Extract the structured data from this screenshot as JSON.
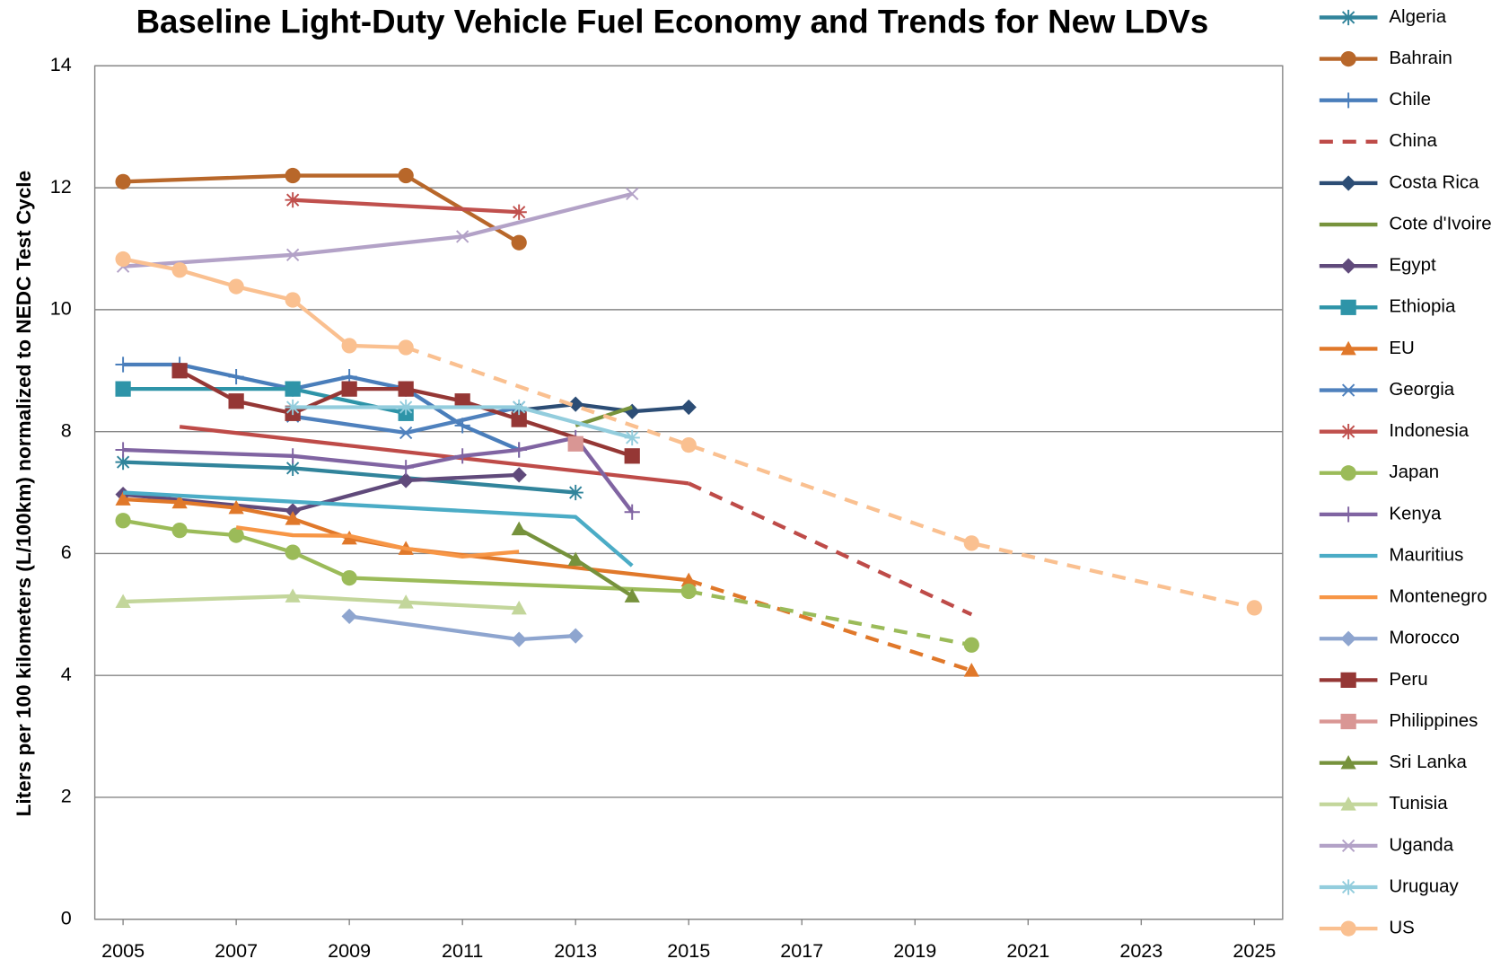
{
  "chart_data": {
    "type": "line",
    "title": "Baseline Light-Duty Vehicle Fuel Economy and Trends for New LDVs",
    "y_label": "Liters per 100 kilometers (L/100km) normalized to NEDC Test Cycle",
    "xlim": [
      2004.5,
      2025.5
    ],
    "xticks": [
      2005,
      2007,
      2009,
      2011,
      2013,
      2015,
      2017,
      2019,
      2021,
      2023,
      2025
    ],
    "ylim": [
      0,
      14
    ],
    "yticks": [
      0,
      2,
      4,
      6,
      8,
      10,
      12,
      14
    ],
    "grid": true,
    "legend": "right",
    "series": [
      {
        "name": "Algeria",
        "color": "#31849b",
        "marker": "asterisk",
        "x": [
          2005,
          2008,
          2013
        ],
        "values": [
          7.5,
          7.4,
          7.0
        ]
      },
      {
        "name": "Bahrain",
        "color": "#b8672a",
        "marker": "circle",
        "x": [
          2005,
          2008,
          2010,
          2012
        ],
        "values": [
          12.1,
          12.2,
          12.2,
          11.1
        ]
      },
      {
        "name": "Chile",
        "color": "#4a7ebb",
        "marker": "plus",
        "x": [
          2005,
          2006,
          2007,
          2008,
          2009,
          2010,
          2011,
          2012
        ],
        "values": [
          9.1,
          9.1,
          8.9,
          8.7,
          8.9,
          8.7,
          8.1,
          7.7
        ]
      },
      {
        "name": "China",
        "color": "#be4b48",
        "marker": "none",
        "line_style": "dashed",
        "dash_from": 2015,
        "x": [
          2006,
          2015,
          2020
        ],
        "values": [
          8.08,
          7.15,
          5.0
        ]
      },
      {
        "name": "Costa Rica",
        "color": "#2c4d75",
        "marker": "diamond",
        "x": [
          2012,
          2013,
          2014,
          2015
        ],
        "values": [
          8.35,
          8.45,
          8.33,
          8.4
        ]
      },
      {
        "name": "Cote d'Ivoire",
        "color": "#77933c",
        "marker": "none",
        "x": [
          2013,
          2014
        ],
        "values": [
          8.1,
          8.4
        ]
      },
      {
        "name": "Egypt",
        "color": "#604a7b",
        "marker": "diamond",
        "x": [
          2005,
          2008,
          2010,
          2012
        ],
        "values": [
          6.97,
          6.7,
          7.2,
          7.29
        ]
      },
      {
        "name": "Ethiopia",
        "color": "#2e94a8",
        "marker": "square",
        "x": [
          2005,
          2008,
          2010
        ],
        "values": [
          8.7,
          8.7,
          8.3
        ]
      },
      {
        "name": "EU",
        "color": "#e0782a",
        "marker": "triangle",
        "dash_from": 2015,
        "x": [
          2005,
          2006,
          2007,
          2008,
          2009,
          2010,
          2015,
          2020
        ],
        "values": [
          6.89,
          6.84,
          6.75,
          6.57,
          6.25,
          6.08,
          5.56,
          4.08
        ]
      },
      {
        "name": "Georgia",
        "color": "#4f81bd",
        "marker": "x",
        "x": [
          2008,
          2010,
          2012
        ],
        "values": [
          8.25,
          7.98,
          8.4
        ]
      },
      {
        "name": "Indonesia",
        "color": "#c0504d",
        "marker": "asterisk",
        "x": [
          2008,
          2012
        ],
        "values": [
          11.8,
          11.6
        ]
      },
      {
        "name": "Japan",
        "color": "#9bbb59",
        "marker": "circle",
        "dash_from": 2015,
        "x": [
          2005,
          2006,
          2007,
          2008,
          2009,
          2015,
          2020
        ],
        "values": [
          6.54,
          6.38,
          6.3,
          6.02,
          5.6,
          5.38,
          4.5
        ]
      },
      {
        "name": "Kenya",
        "color": "#8064a2",
        "marker": "plus",
        "x": [
          2005,
          2008,
          2010,
          2011,
          2012,
          2013,
          2014
        ],
        "values": [
          7.7,
          7.6,
          7.41,
          7.6,
          7.7,
          7.9,
          6.68
        ]
      },
      {
        "name": "Mauritius",
        "color": "#4bacc6",
        "marker": "none",
        "x": [
          2005,
          2013,
          2014
        ],
        "values": [
          7.0,
          6.6,
          5.8
        ]
      },
      {
        "name": "Montenegro",
        "color": "#f79646",
        "marker": "none",
        "x": [
          2007,
          2008,
          2009,
          2010,
          2011,
          2012
        ],
        "values": [
          6.43,
          6.3,
          6.29,
          6.08,
          5.95,
          6.03
        ]
      },
      {
        "name": "Morocco",
        "color": "#8ea5cf",
        "marker": "diamond",
        "x": [
          2009,
          2012,
          2013
        ],
        "values": [
          4.97,
          4.59,
          4.65
        ]
      },
      {
        "name": "Peru",
        "color": "#953735",
        "marker": "square",
        "x": [
          2006,
          2007,
          2008,
          2009,
          2010,
          2011,
          2012,
          2014
        ],
        "values": [
          9.0,
          8.5,
          8.3,
          8.7,
          8.7,
          8.5,
          8.2,
          7.6
        ]
      },
      {
        "name": "Philippines",
        "color": "#d99694",
        "marker": "square",
        "x": [
          2013
        ],
        "values": [
          7.8
        ]
      },
      {
        "name": "Sri Lanka",
        "color": "#76923c",
        "marker": "triangle",
        "x": [
          2012,
          2013,
          2014
        ],
        "values": [
          6.4,
          5.9,
          5.3
        ]
      },
      {
        "name": "Tunisia",
        "color": "#c3d69b",
        "marker": "triangle",
        "x": [
          2005,
          2008,
          2010,
          2012
        ],
        "values": [
          5.21,
          5.3,
          5.2,
          5.1
        ]
      },
      {
        "name": "Uganda",
        "color": "#b3a2c7",
        "marker": "x",
        "x": [
          2005,
          2008,
          2011,
          2014
        ],
        "values": [
          10.71,
          10.9,
          11.2,
          11.9
        ]
      },
      {
        "name": "Uruguay",
        "color": "#93cddd",
        "marker": "asterisk",
        "x": [
          2008,
          2010,
          2012,
          2014
        ],
        "values": [
          8.4,
          8.4,
          8.4,
          7.9
        ]
      },
      {
        "name": "US",
        "color": "#fac090",
        "marker": "circle",
        "dash_from": 2010,
        "x": [
          2005,
          2006,
          2007,
          2008,
          2009,
          2010,
          2015,
          2020,
          2025
        ],
        "values": [
          10.83,
          10.65,
          10.38,
          10.16,
          9.41,
          9.38,
          7.78,
          6.17,
          5.11
        ]
      }
    ]
  }
}
